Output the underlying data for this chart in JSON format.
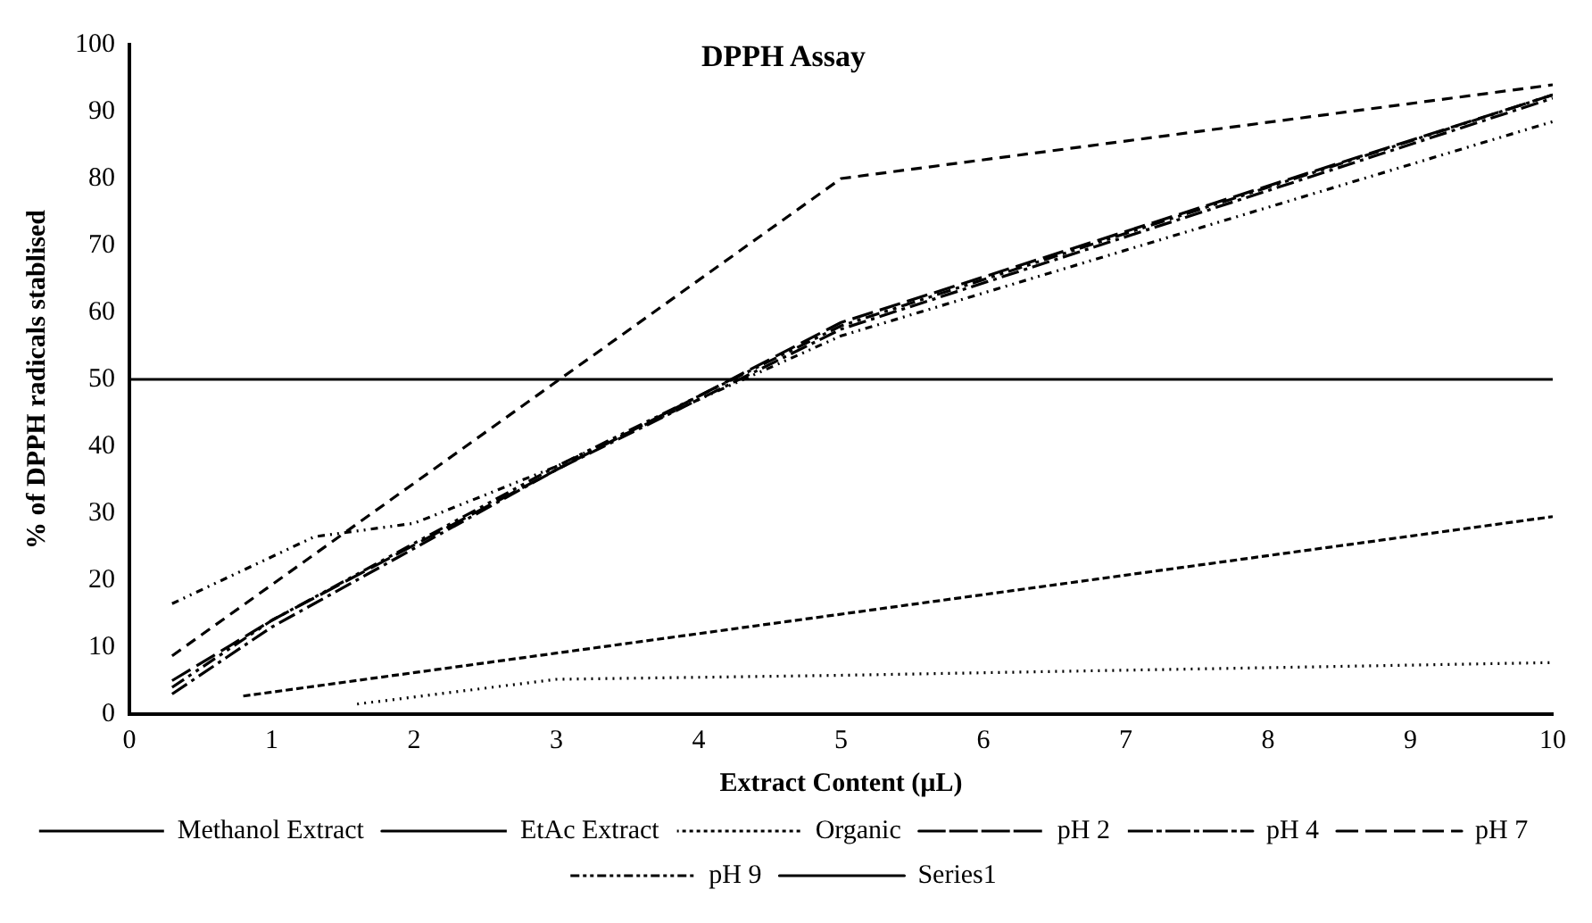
{
  "chart_data": {
    "type": "line",
    "title": "DPPH Assay",
    "xlabel": "Extract Content (µL)",
    "ylabel": "% of DPPH radicals stablised",
    "xlim": [
      0,
      10
    ],
    "xticks": [
      0,
      1,
      2,
      3,
      4,
      5,
      6,
      7,
      8,
      9,
      10
    ],
    "ylim": [
      0,
      100
    ],
    "yticks": [
      0,
      10,
      20,
      30,
      40,
      50,
      60,
      70,
      80,
      90,
      100
    ],
    "grid": false,
    "legend": "bottom",
    "marker": "none",
    "series": [
      {
        "name": "Methanol Extract",
        "color": "#000000",
        "line_style": "dashed",
        "x": [
          0.3,
          5,
          10
        ],
        "values": [
          8.7,
          80,
          94
        ]
      },
      {
        "name": "EtAc Extract",
        "color": "#000000",
        "line_style": "dashed",
        "x": [
          0.8,
          10
        ],
        "values": [
          2.7,
          29.5
        ]
      },
      {
        "name": "Organic",
        "color": "#000000",
        "line_style": "dotted",
        "x": [
          1.6,
          3,
          5,
          10
        ],
        "values": [
          1.5,
          5.2,
          5.8,
          7.7
        ]
      },
      {
        "name": "pH 2",
        "color": "#000000",
        "line_style": "dashed",
        "x": [
          0.3,
          1,
          3,
          5,
          10
        ],
        "values": [
          3,
          13,
          36.5,
          57.5,
          92
        ]
      },
      {
        "name": "pH 4",
        "color": "#000000",
        "line_style": "dashed",
        "x": [
          0.3,
          1,
          3,
          5,
          10
        ],
        "values": [
          4,
          14,
          37,
          58,
          92.5
        ]
      },
      {
        "name": "pH 7",
        "color": "#000000",
        "line_style": "dashed",
        "x": [
          0.3,
          1,
          3,
          5,
          10
        ],
        "values": [
          5,
          14,
          36.5,
          58.5,
          92.5
        ]
      },
      {
        "name": "pH 9",
        "color": "#000000",
        "line_style": "dashed",
        "x": [
          0.3,
          1.3,
          2,
          3,
          4,
          5,
          10
        ],
        "values": [
          16.5,
          26.5,
          28.5,
          37,
          47,
          56.5,
          88.5
        ]
      },
      {
        "name": "Series1",
        "color": "#000000",
        "line_style": "solid",
        "x": [
          0,
          10
        ],
        "values": [
          50,
          50
        ]
      }
    ]
  }
}
